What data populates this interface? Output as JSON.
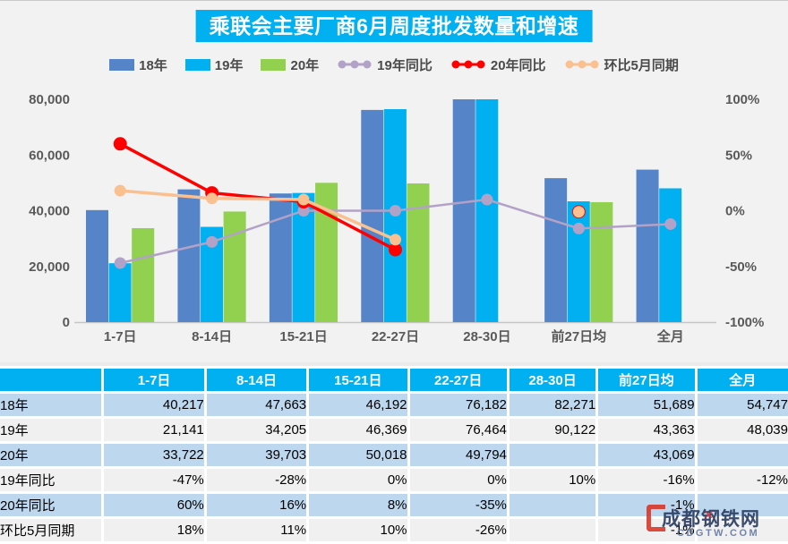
{
  "title": "乘联会主要厂商6月周度批发数量和增速",
  "colors": {
    "accent": "#00B0F0",
    "bar_18": "#5585C8",
    "bar_19": "#00B0F0",
    "bar_20": "#92D050",
    "line_19yoy": "#B3A2C7",
    "line_20yoy": "#FF0000",
    "line_mom": "#FAC090",
    "axis_text": "#595959",
    "row_blue": "#BDD7EE",
    "row_gray": "#F0F0F0",
    "header_bg": "#00B0F0"
  },
  "chart_data": {
    "type": "bar+line",
    "title": "乘联会主要厂商6月周度批发数量和增速",
    "categories": [
      "1-7日",
      "8-14日",
      "15-21日",
      "22-27日",
      "28-30日",
      "前27日均",
      "全月"
    ],
    "bar_series": [
      {
        "name": "18年",
        "color": "#5585C8",
        "values": [
          40217,
          47663,
          46192,
          76182,
          82271,
          51689,
          54747
        ]
      },
      {
        "name": "19年",
        "color": "#00B0F0",
        "values": [
          21141,
          34205,
          46369,
          76464,
          90122,
          43363,
          48039
        ]
      },
      {
        "name": "20年",
        "color": "#92D050",
        "values": [
          33722,
          39703,
          50018,
          49794,
          null,
          43069,
          null
        ]
      }
    ],
    "line_series": [
      {
        "name": "19年同比",
        "color": "#B3A2C7",
        "values": [
          -47,
          -28,
          0,
          0,
          10,
          -16,
          -12
        ],
        "marker_r": 6.5,
        "width": 2.5
      },
      {
        "name": "20年同比",
        "color": "#FF0000",
        "values": [
          60,
          16,
          8,
          -35,
          null,
          -1,
          null
        ],
        "marker_r": 7.5,
        "width": 3.5
      },
      {
        "name": "环比5月同期",
        "color": "#FAC090",
        "values": [
          18,
          11,
          10,
          -26,
          null,
          -1,
          null
        ],
        "marker_r": 6.5,
        "width": 3.5
      }
    ],
    "left_axis": {
      "min": 0,
      "max": 80000,
      "ticks": [
        "0",
        "20,000",
        "40,000",
        "60,000",
        "80,000"
      ]
    },
    "right_axis": {
      "min": -100,
      "max": 100,
      "ticks": [
        "-100%",
        "-50%",
        "0%",
        "50%",
        "100%"
      ]
    },
    "legend_position": "top",
    "grid": false
  },
  "table": {
    "header": [
      "",
      "1-7日",
      "8-14日",
      "15-21日",
      "22-27日",
      "28-30日",
      "前27日均",
      "全月"
    ],
    "rows": [
      {
        "label": "18年",
        "cells": [
          "40,217",
          "47,663",
          "46,192",
          "76,182",
          "82,271",
          "51,689",
          "54,747"
        ]
      },
      {
        "label": "19年",
        "cells": [
          "21,141",
          "34,205",
          "46,369",
          "76,464",
          "90,122",
          "43,363",
          "48,039"
        ]
      },
      {
        "label": "20年",
        "cells": [
          "33,722",
          "39,703",
          "50,018",
          "49,794",
          "",
          "43,069",
          ""
        ]
      },
      {
        "label": "19年同比",
        "cells": [
          "-47%",
          "-28%",
          "0%",
          "0%",
          "10%",
          "-16%",
          "-12%"
        ]
      },
      {
        "label": "20年同比",
        "cells": [
          "60%",
          "16%",
          "8%",
          "-35%",
          "",
          "-1%",
          ""
        ]
      },
      {
        "label": "环比5月同期",
        "cells": [
          "18%",
          "11%",
          "10%",
          "-26%",
          "",
          "-1%",
          ""
        ]
      }
    ]
  },
  "watermark": {
    "name": "成都钢铁网",
    "domain": "CDGTW.COM"
  }
}
